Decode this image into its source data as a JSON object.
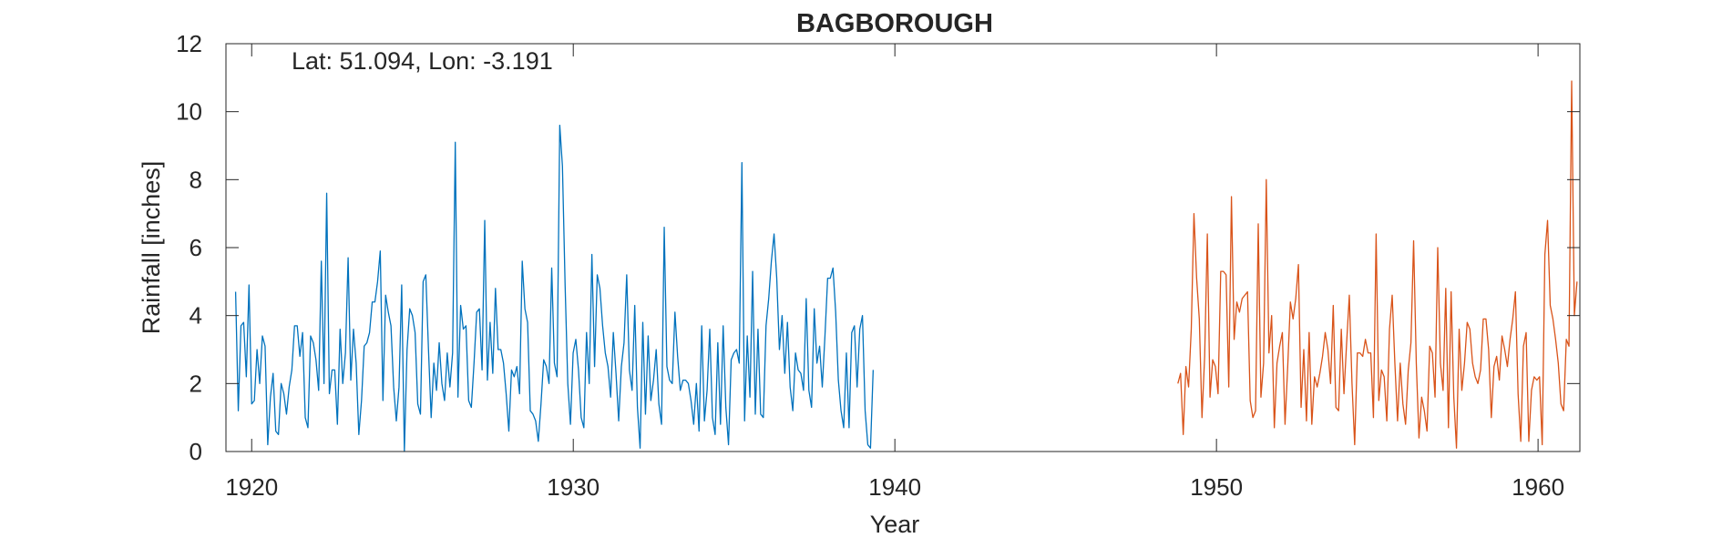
{
  "chart_data": {
    "type": "line",
    "title": "BAGBOROUGH",
    "annotation": "Lat: 51.094, Lon: -3.191",
    "xlabel": "Year",
    "ylabel": "Rainfall [inches]",
    "xlim": [
      1919.2,
      1961.3
    ],
    "ylim": [
      0,
      12
    ],
    "xticks": [
      1920,
      1930,
      1940,
      1950,
      1960
    ],
    "yticks": [
      0,
      2,
      4,
      6,
      8,
      10,
      12
    ],
    "grid": false,
    "colors": {
      "series1": "#0072BD",
      "series2": "#D95319",
      "axis": "#262626"
    },
    "series": [
      {
        "x_start": 1919.5,
        "x_step": 0.0833,
        "values": [
          4.7,
          1.2,
          3.7,
          3.8,
          2.2,
          4.9,
          1.4,
          1.5,
          3.0,
          2.0,
          3.4,
          3.1,
          0.2,
          1.6,
          2.3,
          0.6,
          0.5,
          2.0,
          1.7,
          1.1,
          1.9,
          2.4,
          3.7,
          3.7,
          2.8,
          3.5,
          1.0,
          0.7,
          3.4,
          3.2,
          2.7,
          1.8,
          5.6,
          2.0,
          7.6,
          1.7,
          2.4,
          2.4,
          0.8,
          3.6,
          2.0,
          2.9,
          5.7,
          2.1,
          3.6,
          2.6,
          0.5,
          1.5,
          3.1,
          3.2,
          3.5,
          4.4,
          4.4,
          5.0,
          5.9,
          1.5,
          4.6,
          4.1,
          3.7,
          1.9,
          0.9,
          1.9,
          4.9,
          0.0,
          3.0,
          4.2,
          4.0,
          3.5,
          1.4,
          1.1,
          5.0,
          5.2,
          3.0,
          1.0,
          2.6,
          1.8,
          3.2,
          2.0,
          1.5,
          2.9,
          1.9,
          2.9,
          9.1,
          1.6,
          4.3,
          3.6,
          3.7,
          1.5,
          1.3,
          2.6,
          4.1,
          4.2,
          2.4,
          6.8,
          2.1,
          3.8,
          2.3,
          4.8,
          3.0,
          3.0,
          2.6,
          1.7,
          0.6,
          2.4,
          2.2,
          2.5,
          1.7,
          5.6,
          4.2,
          3.8,
          1.2,
          1.1,
          0.9,
          0.3,
          1.4,
          2.7,
          2.5,
          2.0,
          5.4,
          2.6,
          2.2,
          9.6,
          8.4,
          4.9,
          2.0,
          0.8,
          2.9,
          3.3,
          2.4,
          1.0,
          0.7,
          3.5,
          2.0,
          5.8,
          2.5,
          5.2,
          4.8,
          3.7,
          2.9,
          2.5,
          1.6,
          3.5,
          2.3,
          0.9,
          2.5,
          3.2,
          5.2,
          2.4,
          1.8,
          4.3,
          1.3,
          0.1,
          3.8,
          1.1,
          3.4,
          1.5,
          2.1,
          3.0,
          1.4,
          0.8,
          6.6,
          2.5,
          2.1,
          2.0,
          4.1,
          2.8,
          1.8,
          2.1,
          2.1,
          2.0,
          1.5,
          0.8,
          2.0,
          0.6,
          3.7,
          0.9,
          1.8,
          3.6,
          1.0,
          0.5,
          3.2,
          0.8,
          3.7,
          1.3,
          0.2,
          2.7,
          2.9,
          3.0,
          2.6,
          8.5,
          0.9,
          3.4,
          1.6,
          5.3,
          1.1,
          3.6,
          1.1,
          1.0,
          3.7,
          4.5,
          5.6,
          6.4,
          5.1,
          3.0,
          4.0,
          2.3,
          3.8,
          1.9,
          1.2,
          2.9,
          2.4,
          2.3,
          1.8,
          4.5,
          1.8,
          1.3,
          4.2,
          2.6,
          3.1,
          1.9,
          3.4,
          5.1,
          5.1,
          5.4,
          4.1,
          2.1,
          1.2,
          0.7,
          2.9,
          0.7,
          3.5,
          3.7,
          1.9,
          3.6,
          4.0,
          1.2,
          0.2,
          0.1,
          2.4
        ]
      },
      {
        "x_start": 1948.8,
        "x_step": 0.0833,
        "values": [
          2.0,
          2.3,
          0.5,
          2.5,
          1.9,
          3.6,
          7.0,
          5.1,
          3.9,
          1.0,
          2.8,
          6.4,
          1.6,
          2.7,
          2.5,
          1.7,
          5.3,
          5.3,
          5.2,
          1.9,
          7.5,
          3.3,
          4.4,
          4.1,
          4.5,
          4.6,
          4.7,
          1.5,
          1.0,
          1.2,
          6.7,
          1.6,
          2.6,
          8.0,
          2.9,
          4.0,
          0.7,
          2.6,
          3.1,
          3.5,
          0.8,
          2.5,
          4.4,
          3.9,
          4.5,
          5.5,
          1.3,
          3.0,
          0.9,
          3.5,
          0.8,
          2.2,
          1.9,
          2.3,
          2.8,
          3.5,
          3.0,
          2.0,
          4.3,
          1.3,
          1.2,
          3.6,
          1.7,
          3.2,
          4.6,
          2.0,
          0.2,
          2.9,
          2.9,
          2.8,
          3.3,
          2.9,
          2.9,
          1.0,
          6.4,
          1.5,
          2.4,
          2.2,
          0.9,
          3.6,
          4.6,
          2.6,
          0.9,
          2.6,
          1.4,
          0.8,
          2.4,
          3.2,
          6.2,
          2.6,
          0.4,
          1.6,
          1.2,
          0.6,
          3.1,
          2.9,
          1.6,
          6.0,
          2.6,
          1.8,
          4.8,
          0.7,
          4.7,
          1.6,
          0.1,
          3.6,
          1.8,
          2.6,
          3.8,
          3.6,
          2.6,
          2.2,
          2.0,
          2.4,
          3.9,
          3.9,
          3.0,
          1.0,
          2.5,
          2.8,
          2.1,
          3.4,
          3.0,
          2.5,
          3.3,
          3.9,
          4.7,
          1.7,
          0.3,
          3.1,
          3.5,
          0.3,
          1.8,
          2.2,
          2.1,
          2.2,
          0.2,
          5.8,
          6.8,
          4.3,
          3.9,
          3.3,
          2.6,
          1.4,
          1.2,
          3.3,
          3.1,
          10.9,
          4.0,
          5.0
        ]
      }
    ]
  }
}
